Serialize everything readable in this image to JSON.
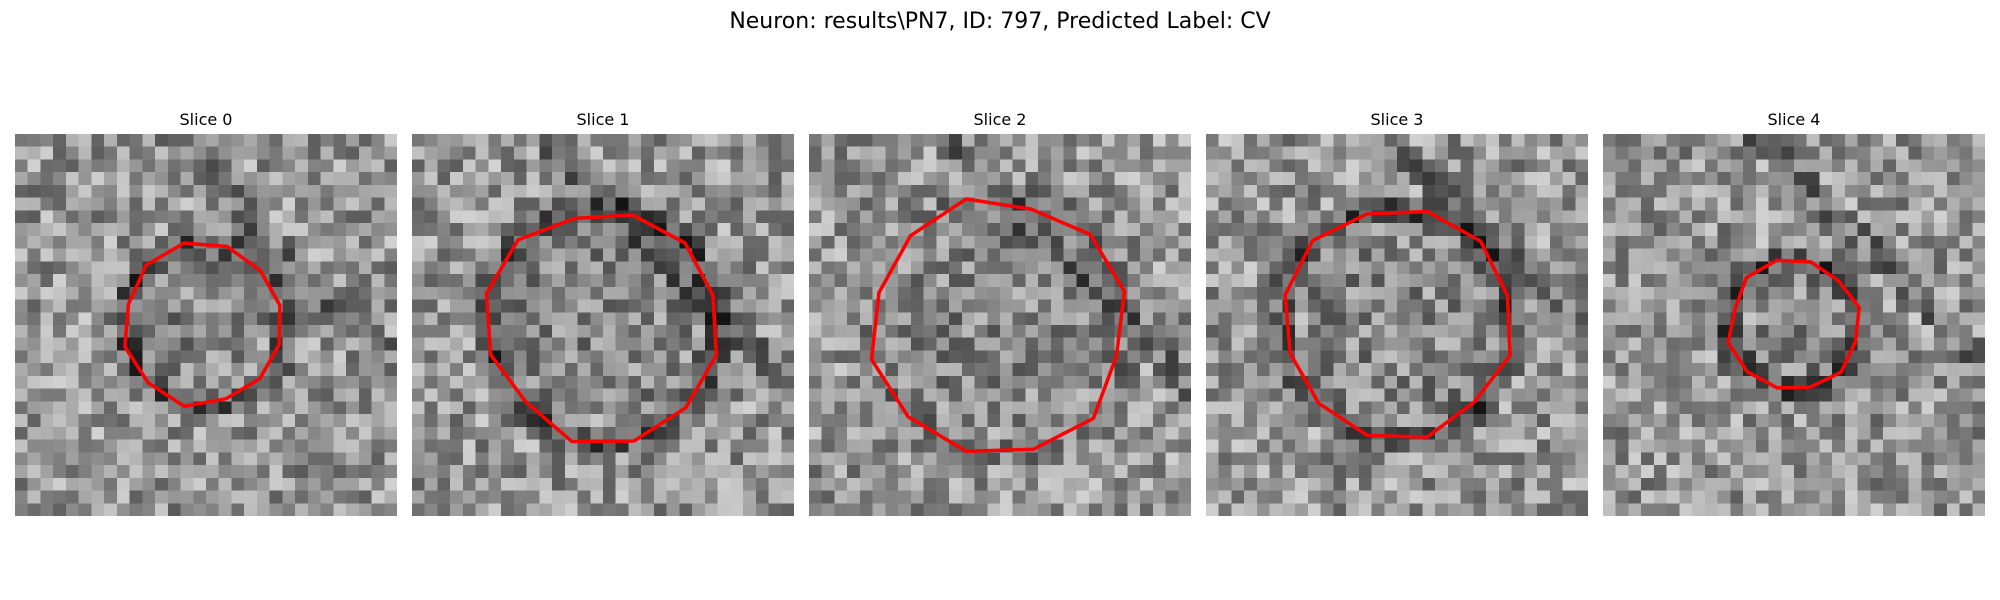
{
  "figure": {
    "suptitle": "Neuron: results\\PN7, ID: 797, Predicted Label: CV"
  },
  "panels": [
    {
      "title": "Slice 0",
      "seed": 11,
      "ring": "dark",
      "radius": 0.21
    },
    {
      "title": "Slice 1",
      "seed": 23,
      "ring": "dark",
      "radius": 0.3
    },
    {
      "title": "Slice 2",
      "seed": 37,
      "ring": "faint",
      "radius": 0.33
    },
    {
      "title": "Slice 3",
      "seed": 41,
      "ring": "dark",
      "radius": 0.3
    },
    {
      "title": "Slice 4",
      "seed": 53,
      "ring": "dark",
      "radius": 0.17
    }
  ],
  "colors": {
    "contour": "#ff0000",
    "background": "#ffffff"
  }
}
